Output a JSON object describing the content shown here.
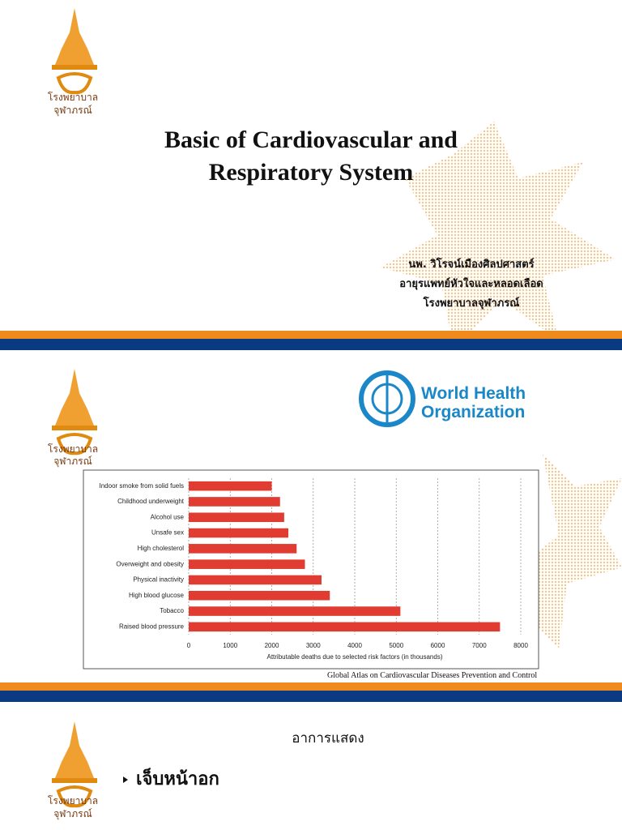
{
  "slides": [
    {
      "logo": [
        "โรงพยาบาล",
        "จุฬาภรณ์"
      ],
      "title": [
        "Basic of Cardiovascular and",
        "Respiratory System"
      ],
      "author": [
        "นพ. วิโรจน์เมืองศิลปศาสตร์",
        "อายุรแพทย์หัวใจและหลอดเลือด",
        "โรงพยาบาลจุฬาภรณ์"
      ]
    },
    {
      "logo": [
        "โรงพยาบาล",
        "จุฬาภรณ์"
      ],
      "who": [
        "World Health",
        "Organization"
      ],
      "caption": "Global Atlas on Cardiovascular Diseases Prevention and Control"
    },
    {
      "logo": [
        "โรงพยาบาล",
        "จุฬาภรณ์"
      ],
      "heading": "อาการแสดง",
      "bullet": "เจ็บหน้าอก"
    }
  ],
  "chart_data": {
    "type": "bar",
    "orientation": "horizontal",
    "categories": [
      "Indoor smoke from solid fuels",
      "Childhood underweight",
      "Alcohol use",
      "Unsafe sex",
      "High cholesterol",
      "Overweight and obesity",
      "Physical inactivity",
      "High blood glucose",
      "Tobacco",
      "Raised blood pressure"
    ],
    "values": [
      2000,
      2200,
      2300,
      2400,
      2600,
      2800,
      3200,
      3400,
      5100,
      7500
    ],
    "color": "#e03c31",
    "xlabel": "Attributable deaths due to selected risk factors (in thousands)",
    "xlim": [
      0,
      8000
    ],
    "xticks": [
      0,
      1000,
      2000,
      3000,
      4000,
      5000,
      6000,
      7000,
      8000
    ],
    "grid": true
  }
}
